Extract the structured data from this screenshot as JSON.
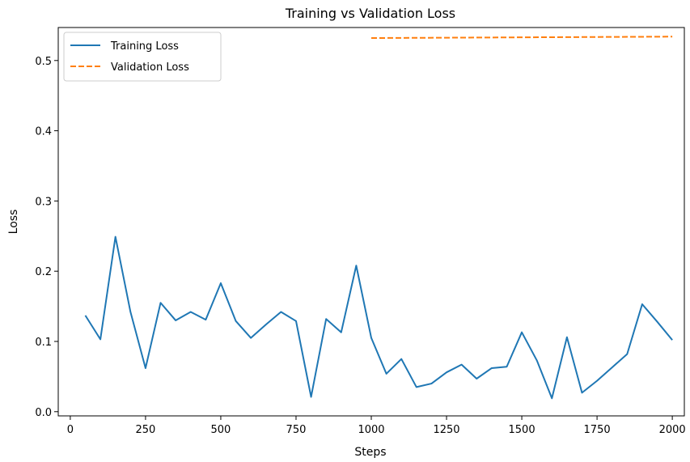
{
  "chart_data": {
    "type": "line",
    "title": "Training vs Validation Loss",
    "xlabel": "Steps",
    "ylabel": "Loss",
    "xlim": [
      -40,
      2040
    ],
    "ylim": [
      -0.006,
      0.547
    ],
    "xticks": [
      0,
      250,
      500,
      750,
      1000,
      1250,
      1500,
      1750,
      2000
    ],
    "xtick_labels": [
      "0",
      "250",
      "500",
      "750",
      "1000",
      "1250",
      "1500",
      "1750",
      "2000"
    ],
    "yticks": [
      0.0,
      0.1,
      0.2,
      0.3,
      0.4,
      0.5
    ],
    "ytick_labels": [
      "0.0",
      "0.1",
      "0.2",
      "0.3",
      "0.4",
      "0.5"
    ],
    "grid": false,
    "legend": "top-left",
    "series": [
      {
        "name": "Training Loss",
        "color": "#1f77b4",
        "linestyle": "solid",
        "x": [
          50,
          100,
          150,
          200,
          250,
          300,
          350,
          400,
          450,
          500,
          550,
          600,
          650,
          700,
          750,
          800,
          850,
          900,
          950,
          1000,
          1050,
          1100,
          1150,
          1200,
          1250,
          1300,
          1350,
          1400,
          1450,
          1500,
          1550,
          1600,
          1650,
          1700,
          1750,
          1800,
          1850,
          1900,
          1950,
          2000
        ],
        "y": [
          0.137,
          0.103,
          0.249,
          0.142,
          0.062,
          0.155,
          0.13,
          0.142,
          0.131,
          0.183,
          0.129,
          0.105,
          0.124,
          0.142,
          0.129,
          0.021,
          0.132,
          0.113,
          0.208,
          0.105,
          0.054,
          0.075,
          0.035,
          0.04,
          0.056,
          0.067,
          0.047,
          0.062,
          0.064,
          0.113,
          0.073,
          0.019,
          0.106,
          0.027,
          0.044,
          0.063,
          0.082,
          0.153,
          0.128,
          0.102
        ]
      },
      {
        "name": "Validation Loss",
        "color": "#ff7f0e",
        "linestyle": "dashed",
        "x": [
          1000,
          2000
        ],
        "y": [
          0.532,
          0.534
        ]
      }
    ]
  }
}
